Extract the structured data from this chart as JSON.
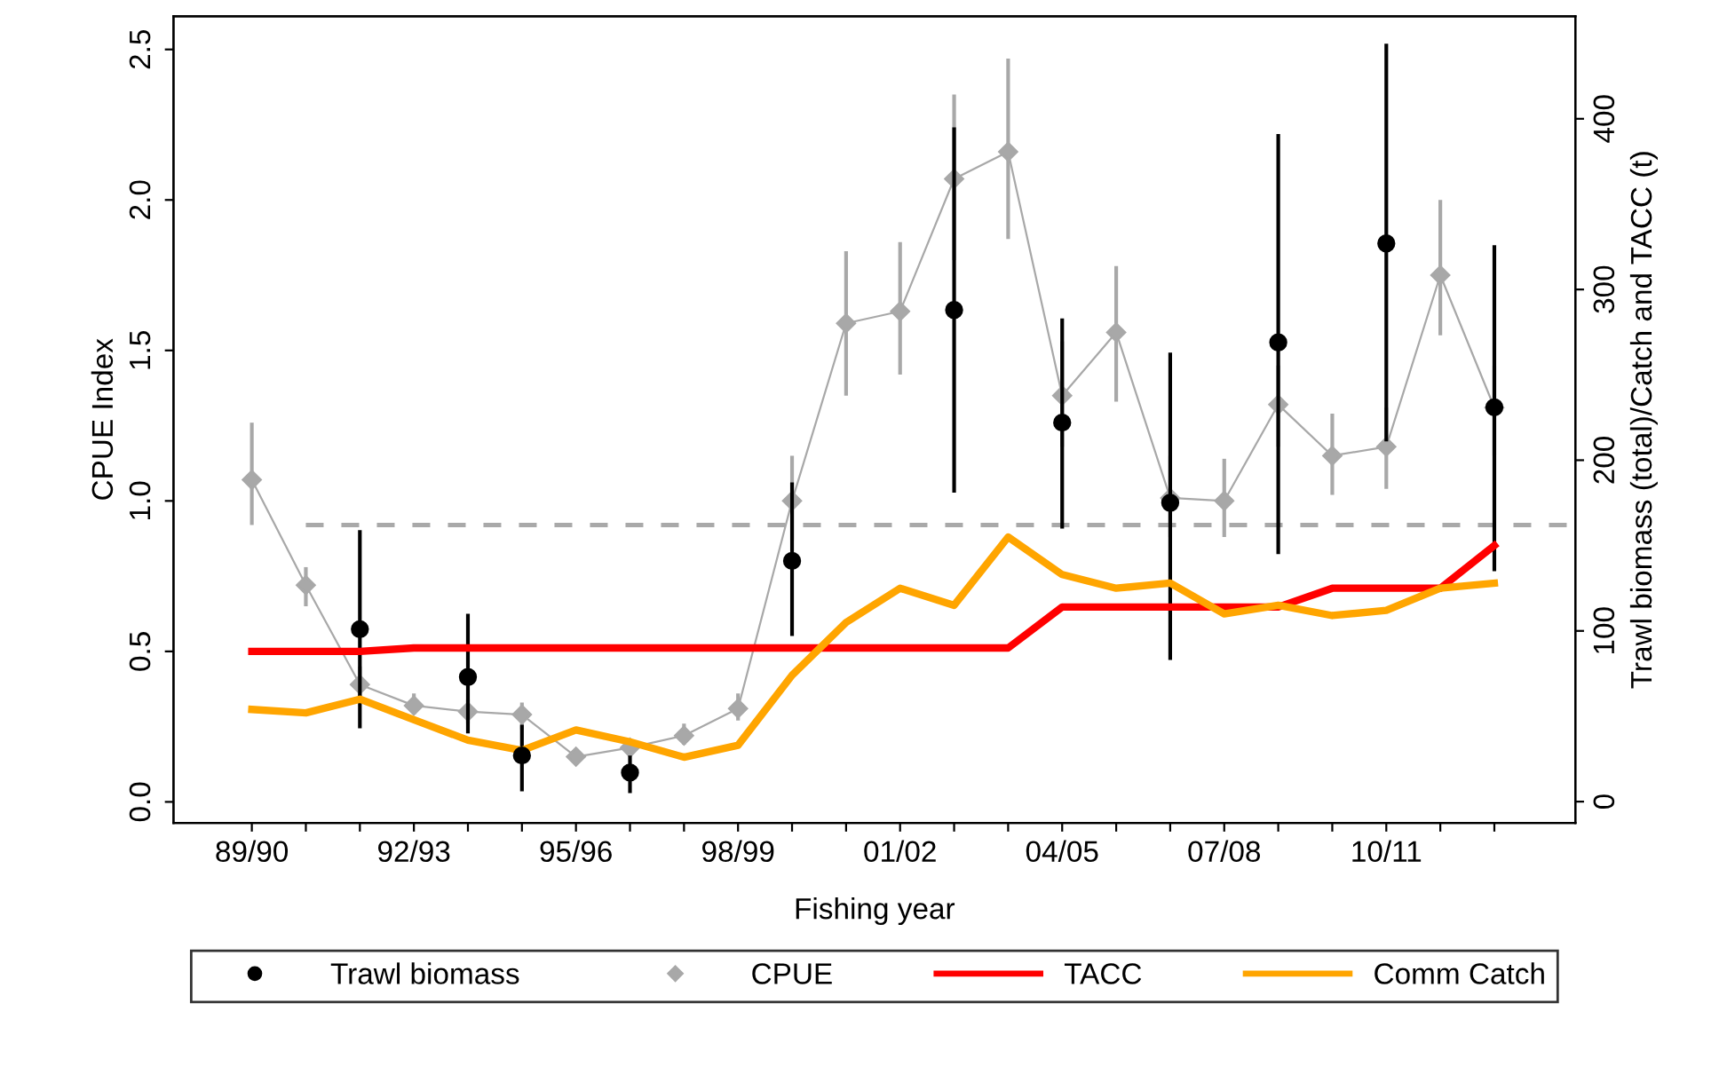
{
  "chart_data": {
    "type": "line",
    "xlabel": "Fishing year",
    "ylabel": "CPUE Index",
    "y2label": "Trawl biomass (total)/Catch and TACC (t)",
    "categories": [
      "89/90",
      null,
      null,
      "92/93",
      null,
      null,
      "95/96",
      null,
      null,
      "98/99",
      null,
      null,
      "01/02",
      null,
      null,
      "04/05",
      null,
      null,
      "07/08",
      null,
      null,
      "10/11",
      null,
      null
    ],
    "ylim": [
      -0.07,
      2.61
    ],
    "yticks": [
      {
        "value": 0,
        "label": "0.0"
      },
      {
        "value": 0.5,
        "label": "0.5"
      },
      {
        "value": 1,
        "label": "1.0"
      },
      {
        "value": 1.5,
        "label": "1.5"
      },
      {
        "value": 2,
        "label": "2.0"
      },
      {
        "value": 2.5,
        "label": "2.5"
      }
    ],
    "y2lim": [
      -12.5,
      460
    ],
    "y2ticks": [
      0,
      100,
      200,
      300,
      400
    ],
    "grid": false,
    "legend": "bottom",
    "ref_lines": [
      {
        "axis": "y",
        "value": 0.92,
        "color": "#a9a9a9",
        "line_style": "dashed"
      }
    ],
    "series": [
      {
        "name": "Trawl biomass",
        "type": "scatter",
        "axis": "y2",
        "color": "#000000",
        "marker": "circle",
        "values": [
          null,
          null,
          101,
          null,
          73,
          27,
          null,
          17,
          null,
          null,
          141,
          null,
          null,
          288,
          null,
          222,
          null,
          175,
          null,
          269,
          null,
          327,
          null,
          231
        ],
        "errors": [
          null,
          null,
          [
            43,
            159
          ],
          null,
          [
            40,
            110
          ],
          [
            6,
            45
          ],
          null,
          [
            5,
            27
          ],
          null,
          null,
          [
            97,
            187
          ],
          null,
          null,
          [
            181,
            395
          ],
          null,
          [
            160,
            283
          ],
          null,
          [
            83,
            263
          ],
          null,
          [
            145,
            391
          ],
          null,
          [
            211,
            444
          ],
          null,
          [
            135,
            326
          ]
        ]
      },
      {
        "name": "CPUE",
        "color": "#a8a8a8",
        "marker": "diamond",
        "values": [
          1.07,
          0.72,
          0.39,
          0.32,
          0.3,
          0.29,
          0.15,
          0.18,
          0.22,
          0.31,
          1.0,
          1.59,
          1.63,
          2.07,
          2.16,
          1.35,
          1.56,
          1.01,
          1.0,
          1.32,
          1.15,
          1.18,
          1.75,
          1.31
        ],
        "errors": [
          [
            0.92,
            1.26
          ],
          [
            0.65,
            0.78
          ],
          [
            0.33,
            0.45
          ],
          [
            0.29,
            0.36
          ],
          [
            0.26,
            0.34
          ],
          [
            0.24,
            0.33
          ],
          [
            0.14,
            0.17
          ],
          [
            0.15,
            0.21
          ],
          [
            0.19,
            0.26
          ],
          [
            0.27,
            0.36
          ],
          [
            0.87,
            1.15
          ],
          [
            1.35,
            1.83
          ],
          [
            1.42,
            1.86
          ],
          [
            1.8,
            2.35
          ],
          [
            1.87,
            2.47
          ],
          [
            1.18,
            1.53
          ],
          [
            1.33,
            1.78
          ],
          [
            0.88,
            1.15
          ],
          [
            0.88,
            1.14
          ],
          [
            1.18,
            1.45
          ],
          [
            1.02,
            1.29
          ],
          [
            1.04,
            1.31
          ],
          [
            1.55,
            2.0
          ],
          [
            1.15,
            1.45
          ]
        ]
      },
      {
        "name": "TACC",
        "type": "line",
        "axis": "y2",
        "color": "#ff0000",
        "marker": "none",
        "values": [
          88,
          88,
          88,
          90,
          90,
          90,
          90,
          90,
          90,
          90,
          90,
          90,
          90,
          90,
          90,
          114,
          114,
          114,
          114,
          114,
          125,
          125,
          125,
          150
        ]
      },
      {
        "name": "Comm Catch",
        "type": "line",
        "axis": "y2",
        "color": "#ffa500",
        "marker": "none",
        "values": [
          54,
          52,
          60,
          48,
          36,
          30,
          42,
          35,
          26,
          33,
          74,
          105,
          125,
          115,
          155,
          133,
          125,
          128,
          110,
          115,
          109,
          112,
          125,
          128
        ]
      }
    ]
  }
}
